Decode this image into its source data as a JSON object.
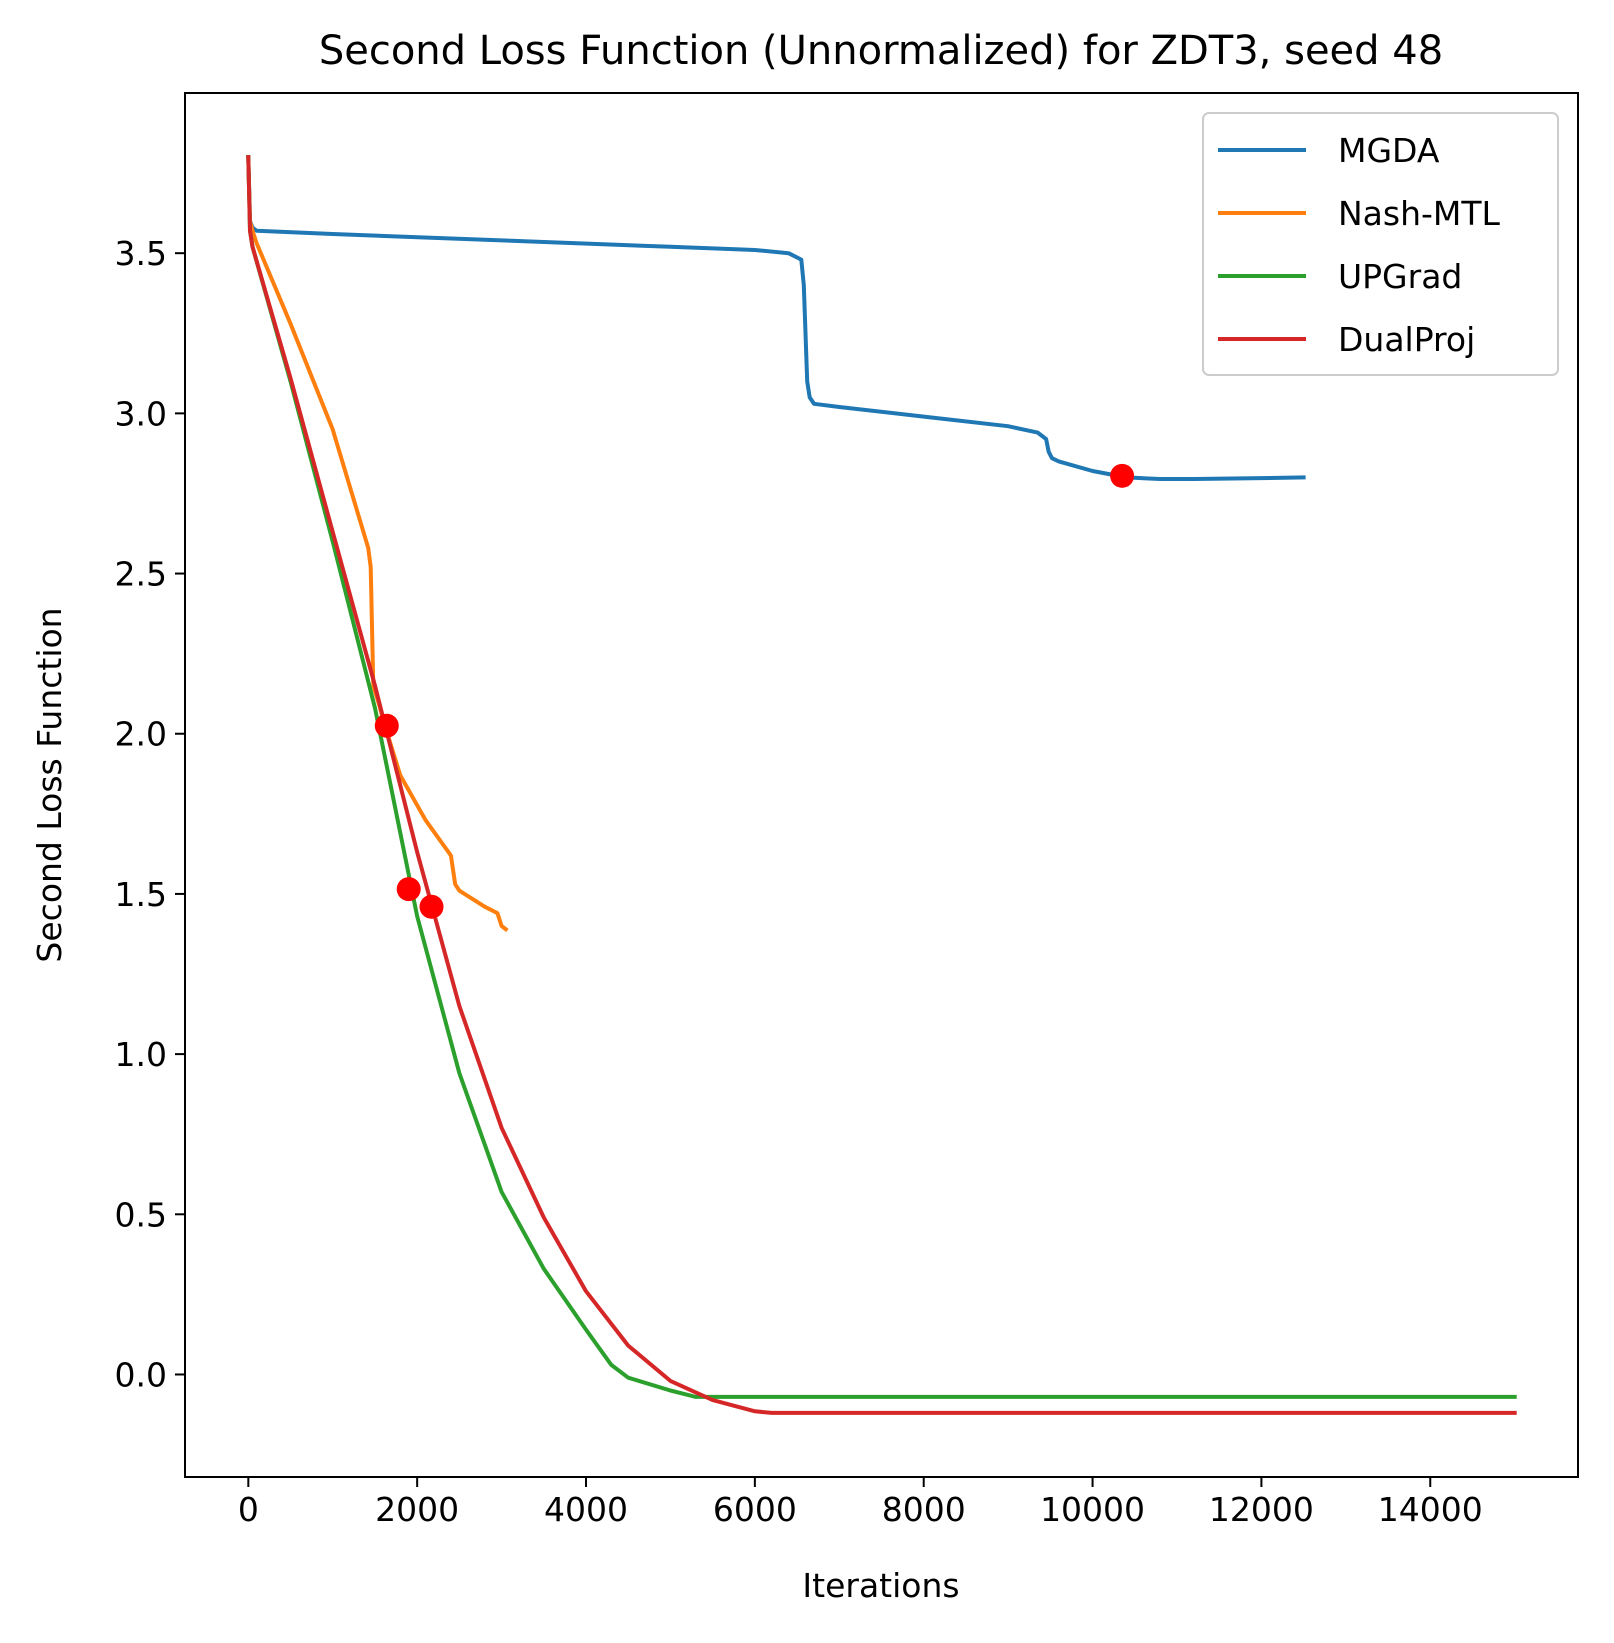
{
  "chart_data": {
    "type": "line",
    "title": "Second Loss Function (Unnormalized) for ZDT3, seed 48",
    "xlabel": "Iterations",
    "ylabel": "Second Loss Function",
    "xlim": [
      -750,
      15750
    ],
    "ylim": [
      -0.32,
      4.0
    ],
    "xticks": [
      0,
      2000,
      4000,
      6000,
      8000,
      10000,
      12000,
      14000
    ],
    "xtick_labels": [
      "0",
      "2000",
      "4000",
      "6000",
      "8000",
      "10000",
      "12000",
      "14000"
    ],
    "yticks": [
      0.0,
      0.5,
      1.0,
      1.5,
      2.0,
      2.5,
      3.0,
      3.5
    ],
    "ytick_labels": [
      "0.0",
      "0.5",
      "1.0",
      "1.5",
      "2.0",
      "2.5",
      "3.0",
      "3.5"
    ],
    "grid": false,
    "legend_position": "upper-right",
    "series": [
      {
        "name": "MGDA",
        "color": "#1f77b4",
        "x": [
          0,
          20,
          50,
          100,
          1000,
          3000,
          5000,
          6000,
          6400,
          6550,
          6580,
          6620,
          6650,
          6700,
          7000,
          8000,
          9000,
          9350,
          9450,
          9480,
          9520,
          9600,
          10000,
          10400,
          10800,
          11200,
          12000,
          12500
        ],
        "y": [
          3.8,
          3.6,
          3.58,
          3.57,
          3.56,
          3.54,
          3.52,
          3.51,
          3.5,
          3.48,
          3.4,
          3.1,
          3.05,
          3.03,
          3.02,
          2.99,
          2.96,
          2.94,
          2.92,
          2.88,
          2.86,
          2.85,
          2.82,
          2.8,
          2.795,
          2.795,
          2.798,
          2.8
        ]
      },
      {
        "name": "Nash-MTL",
        "color": "#ff7f0e",
        "x": [
          0,
          20,
          50,
          100,
          500,
          1000,
          1420,
          1450,
          1480,
          1550,
          1600,
          1800,
          2100,
          2400,
          2450,
          2500,
          2800,
          2950,
          3000,
          3050
        ],
        "y": [
          3.8,
          3.6,
          3.57,
          3.53,
          3.28,
          2.95,
          2.58,
          2.52,
          2.15,
          2.09,
          2.04,
          1.87,
          1.73,
          1.62,
          1.53,
          1.51,
          1.46,
          1.44,
          1.4,
          1.39
        ]
      },
      {
        "name": "UPGrad",
        "color": "#2ca02c",
        "x": [
          0,
          20,
          50,
          500,
          1000,
          1500,
          2000,
          2500,
          3000,
          3500,
          4000,
          4300,
          4500,
          5000,
          5300,
          6000,
          8000,
          10000,
          12000,
          15000
        ],
        "y": [
          3.8,
          3.57,
          3.52,
          3.1,
          2.6,
          2.08,
          1.43,
          0.94,
          0.57,
          0.33,
          0.14,
          0.03,
          -0.01,
          -0.05,
          -0.07,
          -0.07,
          -0.07,
          -0.07,
          -0.07,
          -0.07
        ]
      },
      {
        "name": "DualProj",
        "color": "#d62728",
        "x": [
          0,
          20,
          50,
          500,
          1000,
          1500,
          2000,
          2500,
          3000,
          3500,
          4000,
          4500,
          5000,
          5500,
          6000,
          6200,
          7000,
          10000,
          15000
        ],
        "y": [
          3.8,
          3.57,
          3.52,
          3.11,
          2.63,
          2.15,
          1.63,
          1.15,
          0.77,
          0.49,
          0.26,
          0.09,
          -0.02,
          -0.08,
          -0.115,
          -0.12,
          -0.12,
          -0.12,
          -0.12
        ]
      }
    ],
    "markers": [
      {
        "series": "MGDA",
        "x": 10350,
        "y": 2.805,
        "color": "#ff0000"
      },
      {
        "series": "Nash-MTL",
        "x": 1640,
        "y": 2.025,
        "color": "#ff0000"
      },
      {
        "series": "UPGrad",
        "x": 1900,
        "y": 1.515,
        "color": "#ff0000"
      },
      {
        "series": "DualProj",
        "x": 2170,
        "y": 1.46,
        "color": "#ff0000"
      }
    ]
  }
}
